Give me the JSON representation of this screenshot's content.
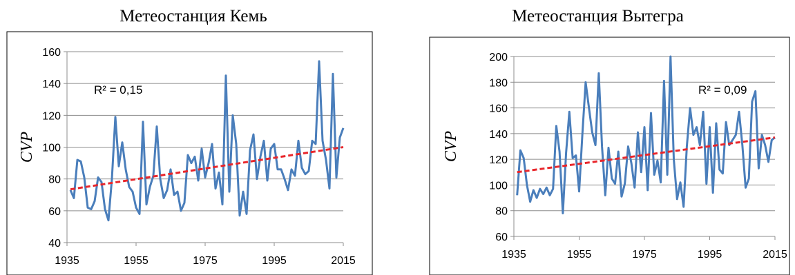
{
  "chart_data": [
    {
      "type": "line",
      "title": "Метеостанция Кемь",
      "xlabel": "",
      "ylabel": "CVP",
      "annotation": "R² = 0,15",
      "xlim": [
        1935,
        2015
      ],
      "ylim": [
        40,
        160
      ],
      "xticks": [
        1935,
        1955,
        1975,
        1995,
        2015
      ],
      "yticks": [
        40,
        60,
        80,
        100,
        120,
        140,
        160
      ],
      "grid": true,
      "line_color": "#4a7ebb",
      "trend_color": "#e8262b",
      "trend": {
        "x": [
          1936,
          2015
        ],
        "y": [
          73.5,
          100
        ]
      },
      "x": [
        1936,
        1937,
        1938,
        1939,
        1940,
        1941,
        1942,
        1943,
        1944,
        1945,
        1946,
        1947,
        1948,
        1949,
        1950,
        1951,
        1952,
        1953,
        1954,
        1955,
        1956,
        1957,
        1958,
        1959,
        1960,
        1961,
        1962,
        1963,
        1964,
        1965,
        1966,
        1967,
        1968,
        1969,
        1970,
        1971,
        1972,
        1973,
        1974,
        1975,
        1976,
        1977,
        1978,
        1979,
        1980,
        1981,
        1982,
        1983,
        1984,
        1985,
        1986,
        1987,
        1988,
        1989,
        1990,
        1991,
        1992,
        1993,
        1994,
        1995,
        1996,
        1997,
        1998,
        1999,
        2000,
        2001,
        2002,
        2003,
        2004,
        2005,
        2006,
        2007,
        2008,
        2009,
        2010,
        2011,
        2012,
        2013,
        2014,
        2015
      ],
      "y": [
        73,
        68,
        92,
        91,
        81,
        62,
        61,
        66,
        81,
        78,
        61,
        54,
        80,
        119,
        88,
        103,
        86,
        75,
        72,
        62,
        58,
        116,
        64,
        75,
        82,
        113,
        80,
        68,
        73,
        86,
        70,
        72,
        60,
        65,
        95,
        90,
        94,
        79,
        99,
        81,
        90,
        102,
        74,
        84,
        64,
        145,
        72,
        120,
        102,
        57,
        72,
        58,
        98,
        108,
        80,
        94,
        104,
        79,
        99,
        102,
        86,
        86,
        80,
        73,
        86,
        82,
        104,
        87,
        83,
        85,
        104,
        102,
        154,
        104,
        92,
        74,
        146,
        81,
        106,
        112
      ]
    },
    {
      "type": "line",
      "title": "Метеостанция Вытегра",
      "xlabel": "",
      "ylabel": "CVP",
      "annotation": "R² = 0,09",
      "xlim": [
        1935,
        2015
      ],
      "ylim": [
        60,
        200
      ],
      "xticks": [
        1935,
        1955,
        1975,
        1995,
        2015
      ],
      "yticks": [
        60,
        80,
        100,
        120,
        140,
        160,
        180,
        200
      ],
      "grid": true,
      "line_color": "#4a7ebb",
      "trend_color": "#e8262b",
      "trend": {
        "x": [
          1936,
          2015
        ],
        "y": [
          110,
          137
        ]
      },
      "x": [
        1936,
        1937,
        1938,
        1939,
        1940,
        1941,
        1942,
        1943,
        1944,
        1945,
        1946,
        1947,
        1948,
        1949,
        1950,
        1951,
        1952,
        1953,
        1954,
        1955,
        1956,
        1957,
        1958,
        1959,
        1960,
        1961,
        1962,
        1963,
        1964,
        1965,
        1966,
        1967,
        1968,
        1969,
        1970,
        1971,
        1972,
        1973,
        1974,
        1975,
        1976,
        1977,
        1978,
        1979,
        1980,
        1981,
        1982,
        1983,
        1984,
        1985,
        1986,
        1987,
        1988,
        1989,
        1990,
        1991,
        1992,
        1993,
        1994,
        1995,
        1996,
        1997,
        1998,
        1999,
        2000,
        2001,
        2002,
        2003,
        2004,
        2005,
        2006,
        2007,
        2008,
        2009,
        2010,
        2011,
        2012,
        2013,
        2014,
        2015
      ],
      "y": [
        92,
        127,
        121,
        100,
        87,
        96,
        90,
        97,
        93,
        98,
        92,
        97,
        146,
        126,
        78,
        125,
        157,
        121,
        123,
        95,
        140,
        180,
        160,
        141,
        131,
        187,
        130,
        92,
        129,
        105,
        101,
        126,
        91,
        101,
        130,
        117,
        98,
        141,
        110,
        145,
        96,
        156,
        108,
        119,
        102,
        181,
        108,
        200,
        120,
        89,
        102,
        83,
        130,
        160,
        139,
        145,
        131,
        157,
        101,
        145,
        94,
        148,
        112,
        109,
        149,
        131,
        135,
        139,
        157,
        131,
        98,
        105,
        165,
        173,
        113,
        139,
        131,
        118,
        135,
        137
      ]
    }
  ]
}
